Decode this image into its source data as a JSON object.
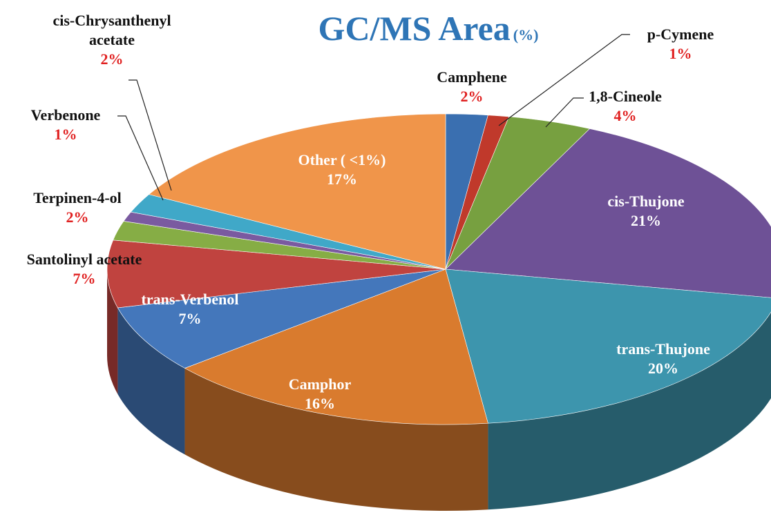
{
  "chart_data": {
    "type": "pie3d",
    "title": "GC/MS Area",
    "title_unit": "(%)",
    "categories": [
      "Camphene",
      "p-Cymene",
      "1,8-Cineole",
      "cis-Thujone",
      "trans-Thujone",
      "Camphor",
      "trans-Verbenol",
      "Santolinyl acetate",
      "Terpinen-4-ol",
      "Verbenone",
      "cis-Chrysanthenyl acetate",
      "Other ( <1%)"
    ],
    "values": [
      2,
      1,
      4,
      21,
      20,
      16,
      7,
      7,
      2,
      1,
      2,
      17
    ],
    "value_labels": [
      "2%",
      "1%",
      "4%",
      "21%",
      "20%",
      "16%",
      "7%",
      "7%",
      "2%",
      "1%",
      "2%",
      "17%"
    ],
    "colors": [
      "#3a6fb0",
      "#c0392b",
      "#77a040",
      "#6e5196",
      "#3d95ad",
      "#d97b2e",
      "#4477bb",
      "#c0433f",
      "#86ad45",
      "#7a5aa0",
      "#40a8c8",
      "#f0954a"
    ]
  }
}
